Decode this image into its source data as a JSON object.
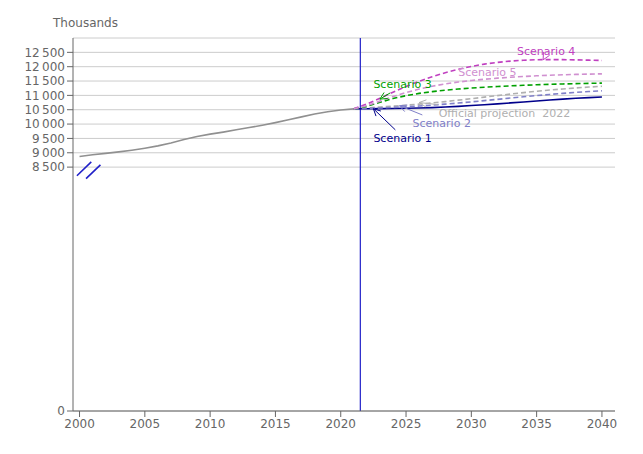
{
  "chart_data": {
    "type": "line",
    "ylabel": "Thousands",
    "xlim": [
      1999.5,
      2041
    ],
    "ylim": [
      0,
      13000
    ],
    "xticks": [
      2000,
      2005,
      2010,
      2015,
      2020,
      2025,
      2030,
      2035,
      2040
    ],
    "yticks": [
      0,
      {
        "value": 8500,
        "label": "8 500"
      },
      {
        "value": 9000,
        "label": "9 000"
      },
      {
        "value": 9500,
        "label": "9 500"
      },
      {
        "value": 10000,
        "label": "10 000"
      },
      {
        "value": 10500,
        "label": "10 500"
      },
      {
        "value": 11000,
        "label": "11 000"
      },
      {
        "value": 11500,
        "label": "11 500"
      },
      {
        "value": 12000,
        "label": "12 000"
      },
      {
        "value": 12500,
        "label": "12 500"
      }
    ],
    "grid": true,
    "reference_lines": [
      {
        "x": 2021.5,
        "color": "#2020c8"
      }
    ],
    "series": [
      {
        "color": "#909090",
        "line_style": "solid",
        "x": [
          2000,
          2001,
          2002,
          2003,
          2004,
          2005,
          2006,
          2007,
          2008,
          2009,
          2010,
          2011,
          2012,
          2013,
          2014,
          2015,
          2016,
          2017,
          2018,
          2019,
          2020,
          2021
        ],
        "values": [
          8870,
          8930,
          8980,
          9030,
          9090,
          9160,
          9240,
          9340,
          9460,
          9570,
          9650,
          9720,
          9800,
          9880,
          9960,
          10050,
          10150,
          10250,
          10350,
          10430,
          10490,
          10530
        ]
      },
      {
        "color": "#b0b0b0",
        "line_style": "dashed",
        "x": [
          2021,
          2022,
          2023,
          2024,
          2025,
          2026,
          2027,
          2028,
          2029,
          2030,
          2031,
          2032,
          2033,
          2034,
          2035,
          2036,
          2037,
          2038,
          2039,
          2040
        ],
        "values": [
          10530,
          10565,
          10595,
          10625,
          10658,
          10695,
          10738,
          10784,
          10834,
          10886,
          10940,
          10993,
          11046,
          11096,
          11143,
          11186,
          11225,
          11260,
          11290,
          11316
        ]
      },
      {
        "color": "#00008b",
        "line_style": "solid",
        "x": [
          2021,
          2022,
          2023,
          2024,
          2025,
          2026,
          2027,
          2028,
          2029,
          2030,
          2031,
          2032,
          2033,
          2034,
          2035,
          2036,
          2037,
          2038,
          2039,
          2040
        ],
        "values": [
          10530,
          10535,
          10540,
          10545,
          10550,
          10560,
          10575,
          10595,
          10618,
          10645,
          10675,
          10705,
          10738,
          10772,
          10805,
          10840,
          10870,
          10898,
          10922,
          10945
        ]
      },
      {
        "color": "#8080c8",
        "line_style": "dashed",
        "x": [
          2021,
          2022,
          2023,
          2024,
          2025,
          2026,
          2027,
          2028,
          2029,
          2030,
          2031,
          2032,
          2033,
          2034,
          2035,
          2036,
          2037,
          2038,
          2039,
          2040
        ],
        "values": [
          10530,
          10545,
          10560,
          10580,
          10602,
          10628,
          10660,
          10695,
          10733,
          10774,
          10818,
          10862,
          10907,
          10951,
          10993,
          11033,
          11070,
          11104,
          11134,
          11160
        ]
      },
      {
        "color": "#00a000",
        "line_style": "dashed",
        "x": [
          2021,
          2022,
          2023,
          2024,
          2025,
          2026,
          2027,
          2028,
          2029,
          2030,
          2031,
          2032,
          2033,
          2034,
          2035,
          2036,
          2037,
          2038,
          2039,
          2040
        ],
        "values": [
          10530,
          10620,
          10760,
          10890,
          10990,
          11070,
          11130,
          11180,
          11220,
          11255,
          11285,
          11310,
          11332,
          11352,
          11370,
          11385,
          11398,
          11410,
          11420,
          11428
        ]
      },
      {
        "color": "#c040c0",
        "line_style": "dashed",
        "x": [
          2021,
          2022,
          2023,
          2024,
          2025,
          2026,
          2027,
          2028,
          2029,
          2030,
          2031,
          2032,
          2033,
          2034,
          2035,
          2036,
          2037,
          2038,
          2039,
          2040
        ],
        "values": [
          10530,
          10700,
          10900,
          11110,
          11310,
          11490,
          11650,
          11790,
          11910,
          12010,
          12090,
          12150,
          12195,
          12225,
          12242,
          12248,
          12245,
          12238,
          12228,
          12218
        ]
      },
      {
        "color": "#d090d0",
        "line_style": "dashed",
        "x": [
          2021,
          2022,
          2023,
          2024,
          2025,
          2026,
          2027,
          2028,
          2029,
          2030,
          2031,
          2032,
          2033,
          2034,
          2035,
          2036,
          2037,
          2038,
          2039,
          2040
        ],
        "values": [
          10530,
          10640,
          10800,
          10960,
          11100,
          11220,
          11320,
          11400,
          11465,
          11518,
          11562,
          11600,
          11633,
          11660,
          11683,
          11702,
          11718,
          11731,
          11742,
          11751
        ]
      },
      {
        "color": "#2020c8",
        "line_style": "solid",
        "x": [
          1999.8,
          2000.9
        ],
        "values": [
          8200,
          8680
        ]
      },
      {
        "color": "#2020c8",
        "line_style": "solid",
        "x": [
          2000.5,
          2001.6
        ],
        "values": [
          8100,
          8580
        ]
      }
    ],
    "annotations": [
      {
        "text": "Scenario 1",
        "color": "#00008b",
        "x": 2022.5,
        "y": 10535,
        "text_x": 2022.5,
        "text_y": 9380
      },
      {
        "text": "Scenario 2",
        "color": "#8080c8",
        "x": 2024.5,
        "y": 10640,
        "text_x": 2025.5,
        "text_y": 9900
      },
      {
        "text": "Official projection  2022",
        "color": "#b0b0b0",
        "x": 2026.0,
        "y": 10750,
        "text_x": 2027.5,
        "text_y": 10260
      },
      {
        "text": "Scenario 3",
        "color": "#00a000",
        "x": 2023.0,
        "y": 10870,
        "text_x": 2022.5,
        "text_y": 11260
      },
      {
        "text": "Scenario 4",
        "color": "#c040c0",
        "x": 2035.5,
        "y": 12240,
        "text_x": 2033.5,
        "text_y": 12420
      },
      {
        "text": "Scenario 5",
        "color": "#d090d0",
        "x": 2030.5,
        "y": 11530,
        "text_x": 2029.0,
        "text_y": 11690
      }
    ]
  }
}
